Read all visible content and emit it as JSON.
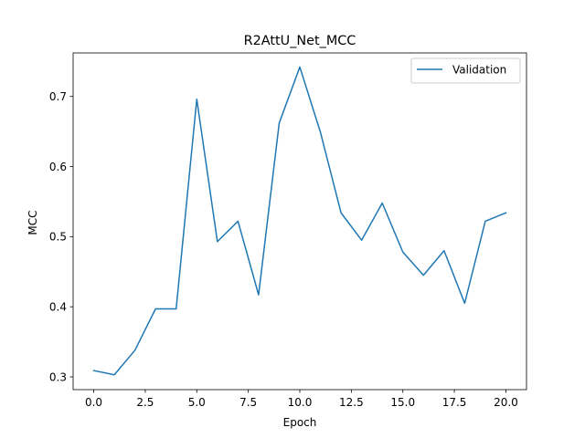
{
  "chart_data": {
    "type": "line",
    "title": "R2AttU_Net_MCC",
    "xlabel": "Epoch",
    "ylabel": "MCC",
    "xlim": [
      -1.0,
      21.0
    ],
    "ylim": [
      0.2818,
      0.7621
    ],
    "x_ticks": [
      0.0,
      2.5,
      5.0,
      7.5,
      10.0,
      12.5,
      15.0,
      17.5,
      20.0
    ],
    "x_tick_labels": [
      "0.0",
      "2.5",
      "5.0",
      "7.5",
      "10.0",
      "12.5",
      "15.0",
      "17.5",
      "20.0"
    ],
    "y_ticks": [
      0.3,
      0.4,
      0.5,
      0.6,
      0.7
    ],
    "y_tick_labels": [
      "0.3",
      "0.4",
      "0.5",
      "0.6",
      "0.7"
    ],
    "grid": false,
    "legend_position": "top-right",
    "series": [
      {
        "name": "Validation",
        "color": "#1f77b4",
        "x": [
          0,
          1,
          2,
          3,
          4,
          5,
          6,
          7,
          8,
          9,
          10,
          11,
          12,
          13,
          14,
          15,
          16,
          17,
          18,
          19,
          20
        ],
        "values": [
          0.309,
          0.303,
          0.338,
          0.397,
          0.397,
          0.696,
          0.493,
          0.522,
          0.417,
          0.662,
          0.742,
          0.649,
          0.534,
          0.495,
          0.548,
          0.478,
          0.445,
          0.48,
          0.405,
          0.522,
          0.534
        ]
      }
    ]
  }
}
